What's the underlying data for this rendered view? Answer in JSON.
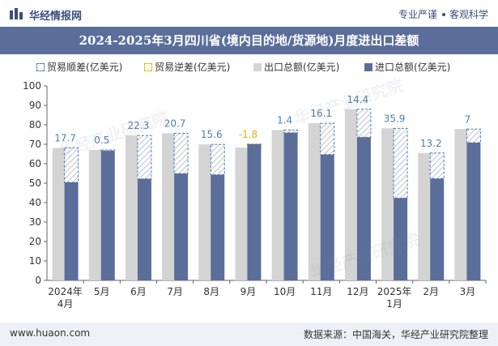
{
  "header": {
    "brand": "华经情报网",
    "tagline_left": "专业严谨",
    "tagline_right": "客观科学"
  },
  "title": "2024-2025年3月四川省(境内目的地/货源地)月度进出口差额",
  "legend": {
    "surplus": "贸易顺差(亿美元)",
    "deficit": "贸易逆差(亿美元)",
    "export": "出口总额(亿美元)",
    "import": "进口总额(亿美元)"
  },
  "footer": {
    "site": "www.huaon.com",
    "source": "数据来源：中国海关，华经产业研究院整理"
  },
  "watermark": "华经产业研究院",
  "colors": {
    "export": "#d4d4d4",
    "import": "#5b6e9a",
    "surplus": "#4f7fa8",
    "deficit": "#e0b400"
  },
  "chart_data": {
    "type": "bar",
    "categories": [
      "2024年\n4月",
      "5月",
      "6月",
      "7月",
      "8月",
      "9月",
      "10月",
      "11月",
      "12月",
      "2025年\n1月",
      "2月",
      "3月"
    ],
    "ylim": [
      0,
      100
    ],
    "yticks": [
      0,
      10,
      20,
      30,
      40,
      50,
      60,
      70,
      80,
      90,
      100
    ],
    "series": [
      {
        "name": "出口总额(亿美元)",
        "values": [
          68.1,
          67.1,
          74.5,
          75.6,
          69.9,
          68.3,
          77.3,
          80.8,
          88.0,
          78.2,
          65.5,
          77.8
        ]
      },
      {
        "name": "进口总额(亿美元)",
        "values": [
          50.4,
          66.6,
          52.2,
          54.9,
          54.3,
          70.1,
          75.9,
          64.7,
          73.6,
          42.3,
          52.3,
          70.8
        ]
      }
    ],
    "balance": {
      "values": [
        17.7,
        0.5,
        22.3,
        20.7,
        15.6,
        -1.8,
        1.4,
        16.1,
        14.4,
        35.9,
        13.2,
        7
      ],
      "labels": [
        "17.7",
        "0.5",
        "22.3",
        "20.7",
        "15.6",
        "-1.8",
        "1.4",
        "16.1",
        "14.4",
        "35.9",
        "13.2",
        "7"
      ]
    }
  }
}
